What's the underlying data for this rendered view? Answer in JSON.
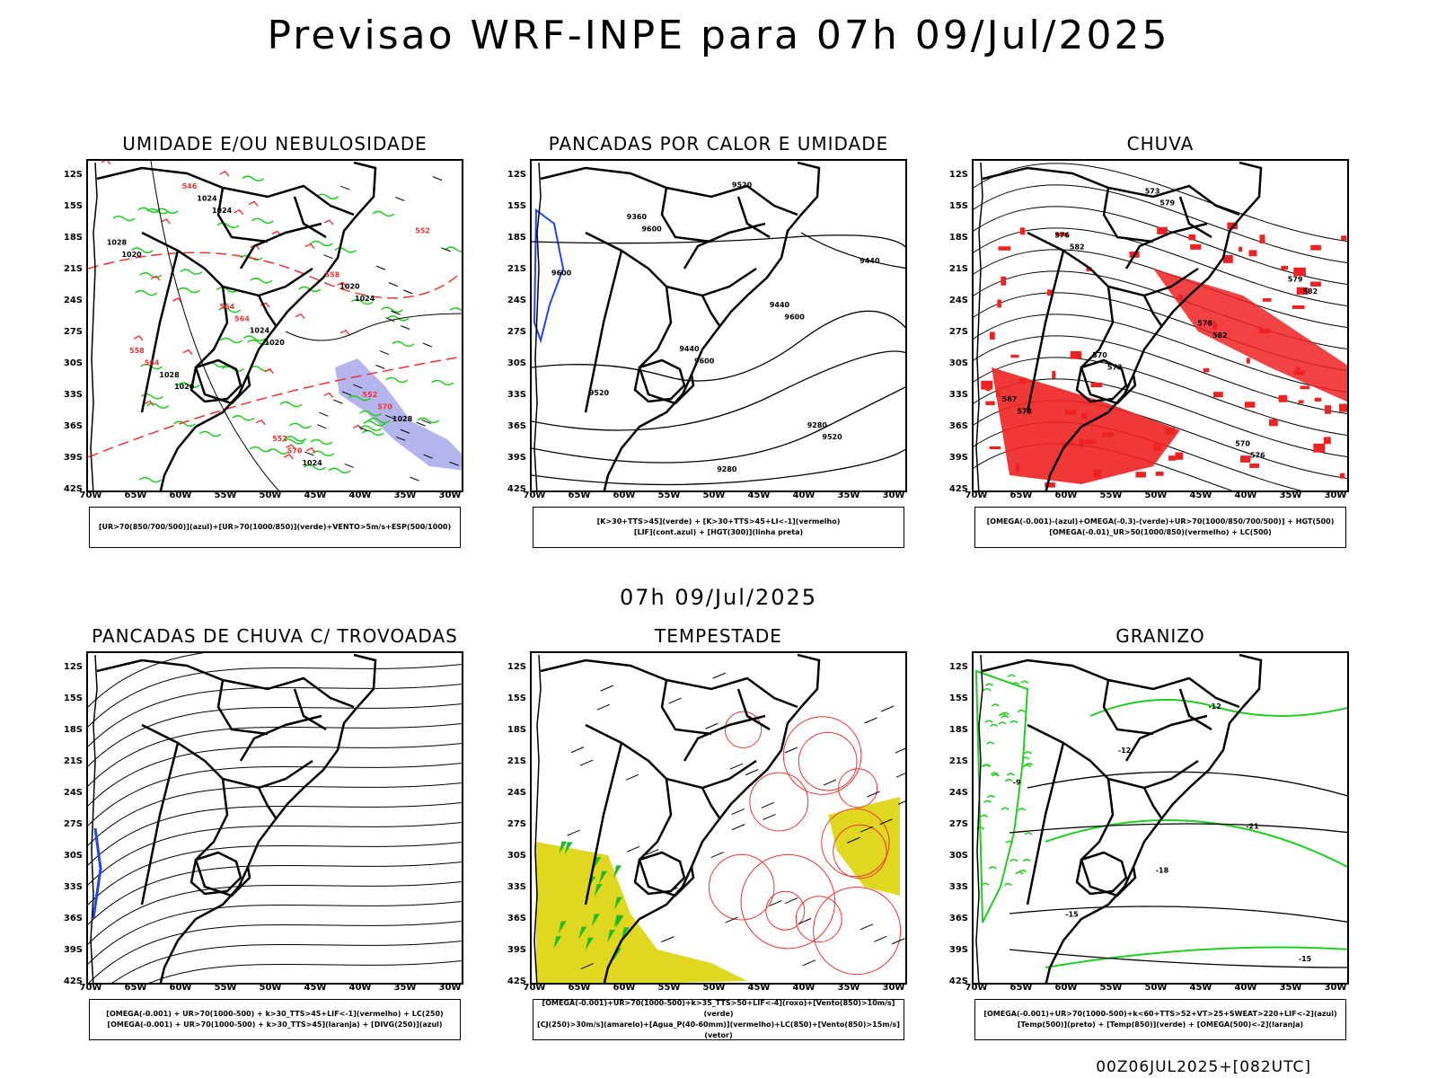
{
  "header": {
    "title": "Previsao WRF-INPE  para 07h 09/Jul/2025",
    "subtitle_date": "07h 09/Jul/2025",
    "footer": "00Z06JUL2025+[082UTC]"
  },
  "axes": {
    "lat_labels": [
      "12S",
      "15S",
      "18S",
      "21S",
      "24S",
      "27S",
      "30S",
      "33S",
      "36S",
      "39S",
      "42S"
    ],
    "lon_labels": [
      "70W",
      "65W",
      "60W",
      "55W",
      "50W",
      "45W",
      "40W",
      "35W",
      "30W"
    ]
  },
  "panels": [
    {
      "title": "UMIDADE E/OU NEBULOSIDADE",
      "legend": [
        "[UR>70(850/700/500)](azul)+[UR>70(1000/850)](verde)+VENTO>5m/s+ESP(500/1000)"
      ],
      "contour_labels": [
        "1020",
        "1020",
        "1024",
        "1020",
        "1024",
        "1024",
        "1028",
        "1028",
        "1024",
        "1020",
        "1028",
        "1024",
        "570",
        "570",
        "564",
        "564",
        "558",
        "552",
        "546",
        "552",
        "552",
        "558",
        "564"
      ]
    },
    {
      "title": "PANCADAS POR CALOR E UMIDADE",
      "legend": [
        "[K>30+TTS>45](verde) + [K>30+TTS>45+LI<-1](vermelho)",
        "[LIF](cont.azul) + [HGT(300)](linha preta)"
      ],
      "contour_labels": [
        "9600",
        "9600",
        "9600",
        "9600",
        "9520",
        "9520",
        "9520",
        "9440",
        "9440",
        "9440",
        "9360",
        "9280",
        "9280"
      ]
    },
    {
      "title": "CHUVA",
      "legend": [
        "[OMEGA(-0.001)-(azul)+OMEGA(-0.3)-(verde)+UR>70(1000/850/700/500)] + HGT(500)",
        "[OMEGA(-0.01)_UR>50(1000/850)(vermelho) + LC(500)"
      ],
      "contour_labels": [
        "582",
        "582",
        "582",
        "579",
        "576",
        "573",
        "573",
        "576",
        "579",
        "576",
        "573",
        "570",
        "567",
        "570"
      ]
    },
    {
      "title": "PANCADAS DE CHUVA C/ TROVOADAS",
      "legend": [
        "[OMEGA(-0.001) + UR>70(1000-500) + k>30_TTS>45+LIF<-1](vermelho) + LC(250)",
        "[OMEGA(-0.001) + UR>70(1000-500) + k>30_TTS>45](laranja) + [DIVG(250)](azul)"
      ],
      "contour_labels": []
    },
    {
      "title": "TEMPESTADE",
      "legend": [
        "[OMEGA(-0.001)+UR>70(1000-500)+k>35_TTS>50+LIF<-4](roxo)+[Vento(850)>10m/s](verde)",
        "[CJ(250)>30m/s](amarelo)+[Agua_P(40-60mm)](vermelho)+LC(850)+[Vento(850)>15m/s](vetor)"
      ],
      "contour_labels": []
    },
    {
      "title": "GRANIZO",
      "legend": [
        "[OMEGA(-0.001)+UR>70(1000-500)+k<60+TTS>52+VT>25+SWEAT>220+LIF<-2](azul)",
        "[Temp(500)](preto) + [Temp(850)](verde) + [OMEGA(500)<-2](laranja)"
      ],
      "contour_labels": [
        "-12",
        "-12",
        "-15",
        "-15",
        "-18",
        "-21",
        "-9"
      ]
    }
  ]
}
